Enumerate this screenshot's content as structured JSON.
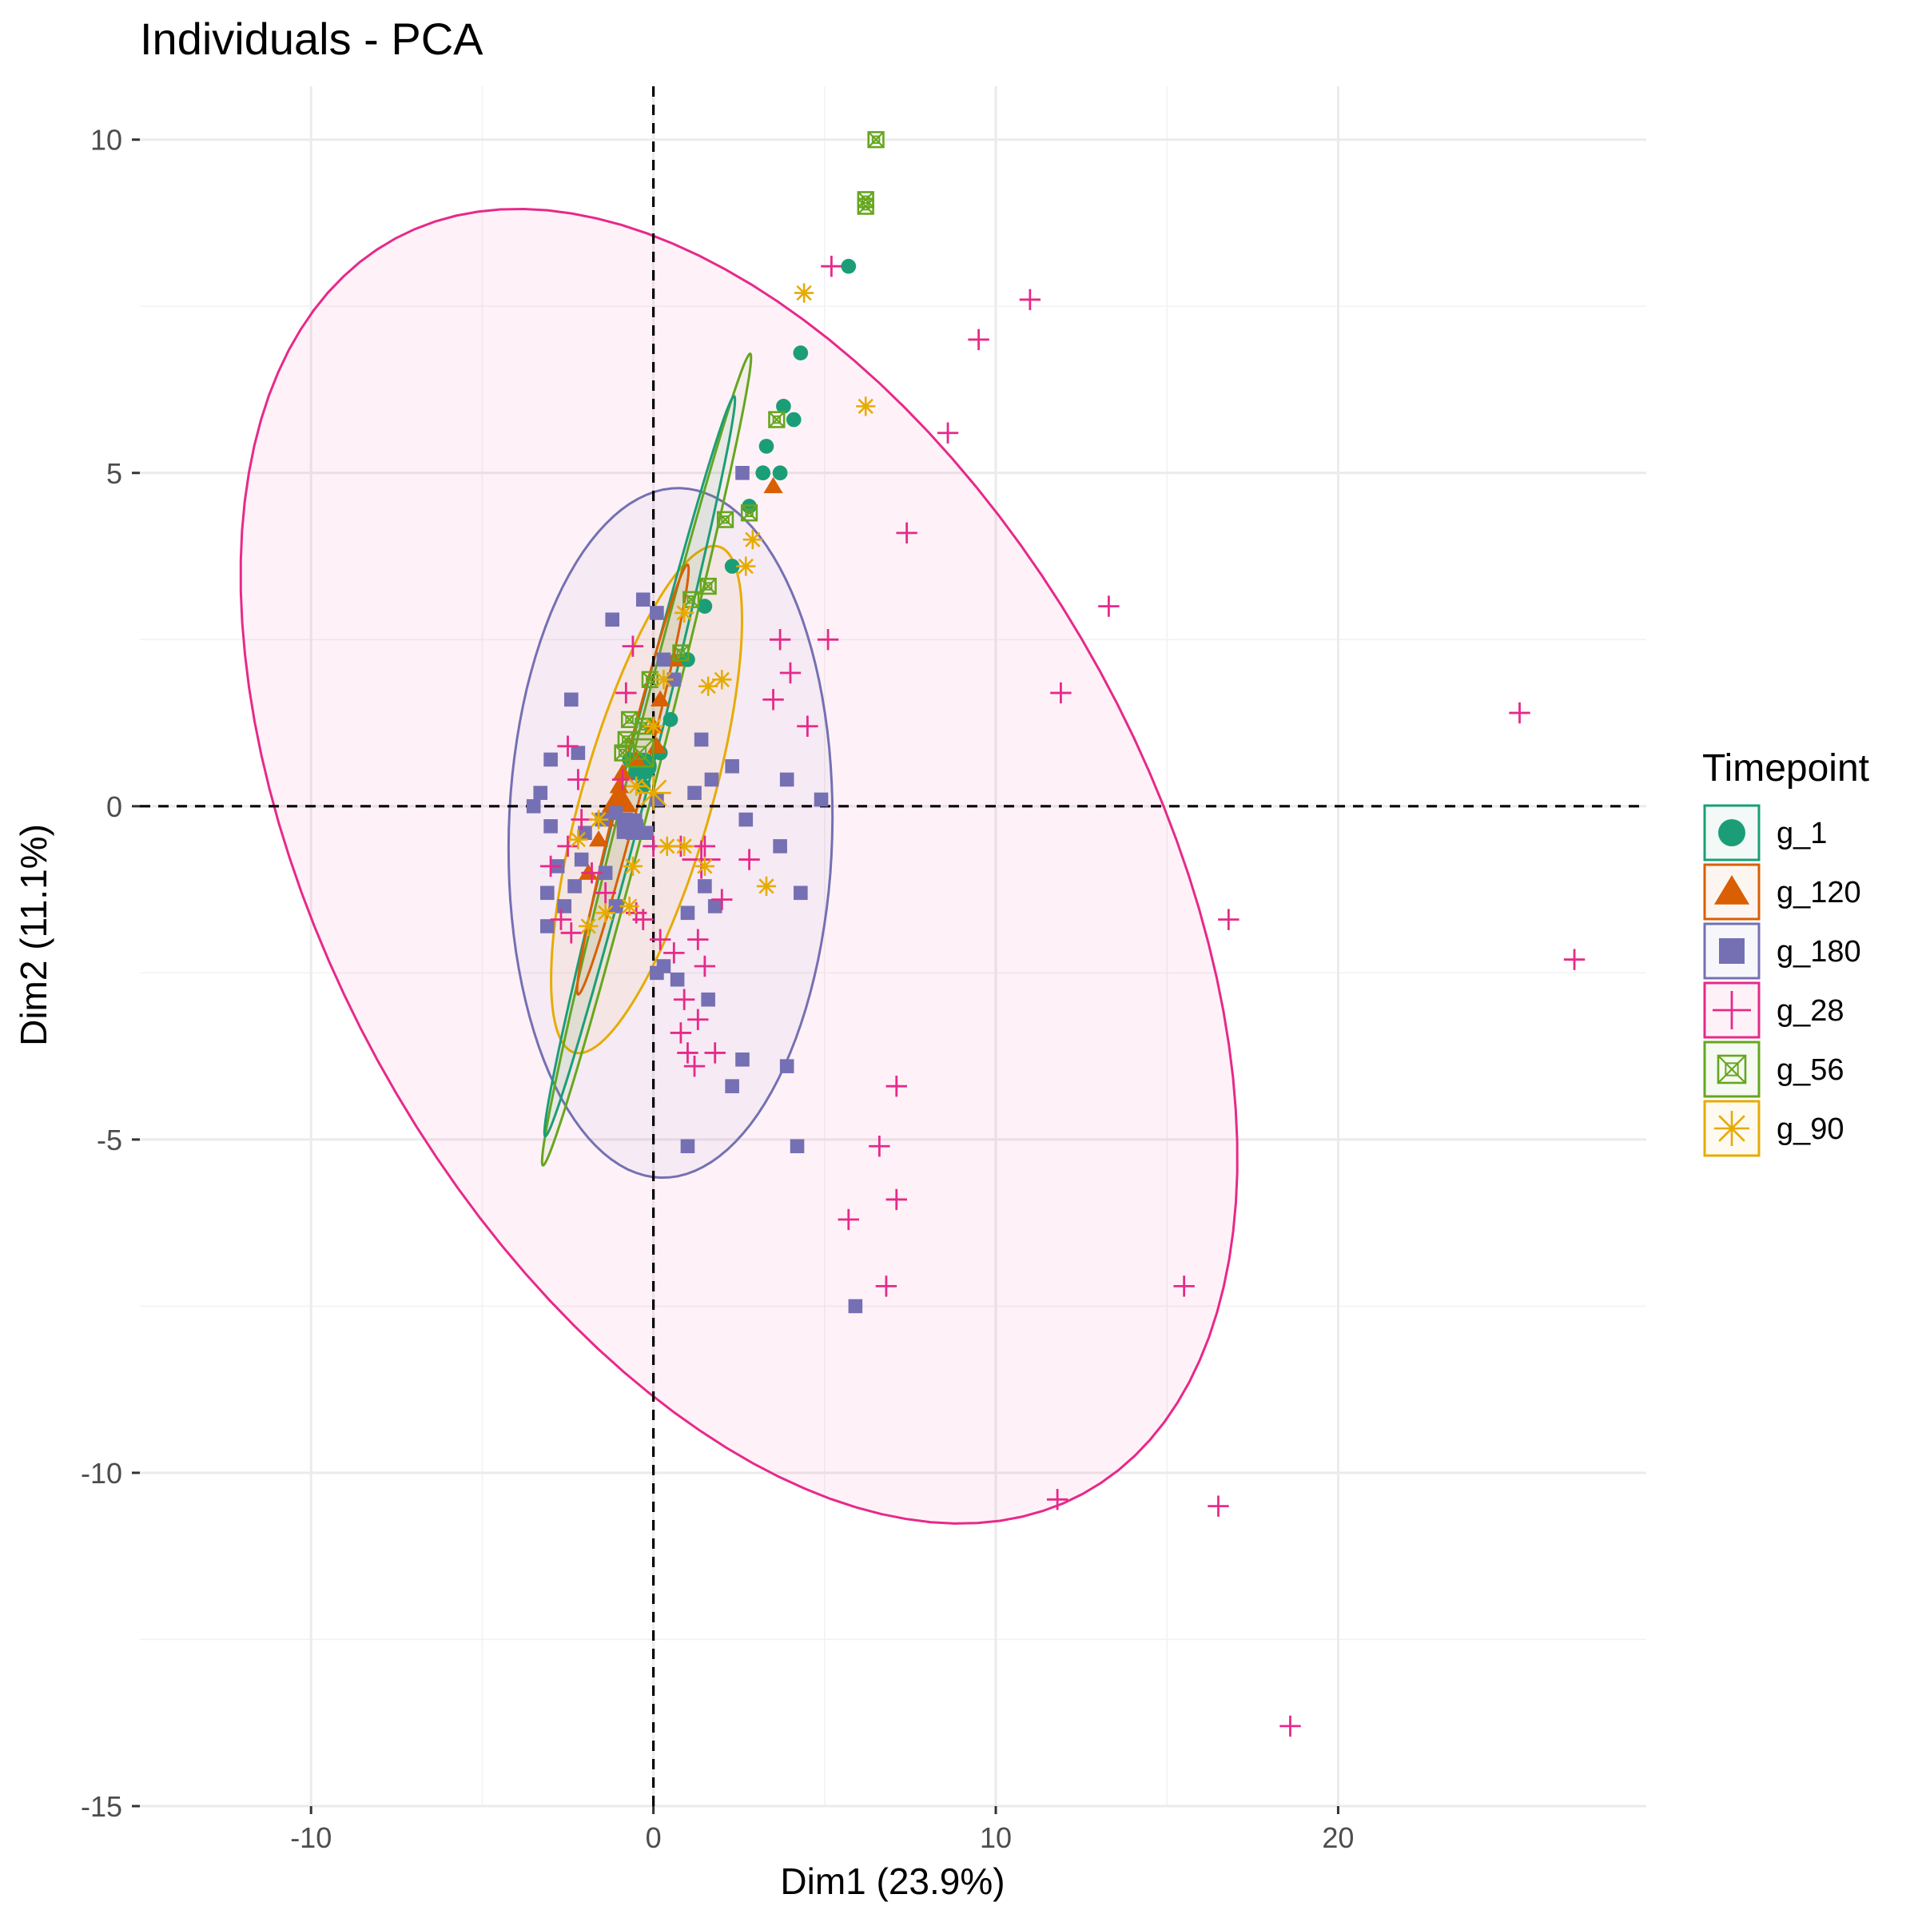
{
  "chart_data": {
    "type": "scatter",
    "title": "Individuals - PCA",
    "xlabel": "Dim1 (23.9%)",
    "ylabel": "Dim2 (11.1%)",
    "xlim": [
      -15,
      29
    ],
    "ylim": [
      -15,
      10.8
    ],
    "xticks": [
      -10,
      0,
      10,
      20
    ],
    "yticks": [
      -15,
      -10,
      -5,
      0,
      5,
      10
    ],
    "xtick_labels": [
      "-10",
      "0",
      "10",
      "20"
    ],
    "ytick_labels": [
      "-15",
      "-10",
      "-5",
      "0",
      "5",
      "10"
    ],
    "reference_lines": {
      "x": 0,
      "y": 0,
      "style": "dashed"
    },
    "grid": true,
    "legend": {
      "title": "Timepoint",
      "position": "right"
    },
    "series": [
      {
        "name": "g_1",
        "color": "#1B9E77",
        "marker": "circle",
        "points": [
          [
            5.7,
            8.1
          ],
          [
            4.3,
            6.8
          ],
          [
            3.8,
            6.0
          ],
          [
            4.1,
            5.8
          ],
          [
            3.3,
            5.4
          ],
          [
            3.7,
            5.0
          ],
          [
            3.2,
            5.0
          ],
          [
            2.8,
            4.5
          ],
          [
            2.3,
            3.6
          ],
          [
            1.5,
            3.0
          ],
          [
            1.0,
            2.2
          ],
          [
            0.5,
            1.3
          ],
          [
            0.2,
            0.8
          ],
          [
            -0.2,
            0.6
          ],
          [
            -0.5,
            0.5
          ],
          [
            -0.7,
            0.7
          ],
          [
            -0.3,
            0.3
          ]
        ],
        "mean": [
          -0.3,
          0.6
        ],
        "ellipse": {
          "cx": -0.4,
          "cy": 0.6,
          "rx": 6.2,
          "ry": 0.35,
          "angle": 63.5
        }
      },
      {
        "name": "g_120",
        "color": "#D95F02",
        "marker": "triangle",
        "points": [
          [
            3.5,
            4.8
          ],
          [
            0.6,
            2.2
          ],
          [
            0.2,
            1.6
          ],
          [
            0.0,
            1.2
          ],
          [
            -0.5,
            0.7
          ],
          [
            -1.0,
            0.3
          ],
          [
            -1.2,
            0.0
          ],
          [
            -1.6,
            -0.5
          ],
          [
            -1.9,
            -1.0
          ],
          [
            -1.4,
            -0.2
          ],
          [
            -0.9,
            0.5
          ],
          [
            0.1,
            0.9
          ]
        ],
        "mean": [
          -1.0,
          0.1
        ],
        "ellipse": {
          "cx": -0.6,
          "cy": 0.4,
          "rx": 3.6,
          "ry": 0.3,
          "angle": 63.5
        }
      },
      {
        "name": "g_180",
        "color": "#7570B3",
        "marker": "square",
        "points": [
          [
            -1.2,
            2.8
          ],
          [
            -2.4,
            1.6
          ],
          [
            -2.2,
            0.8
          ],
          [
            -3.0,
            0.7
          ],
          [
            -3.3,
            0.2
          ],
          [
            -3.5,
            0.0
          ],
          [
            -3.0,
            -0.3
          ],
          [
            -2.8,
            -0.9
          ],
          [
            -3.1,
            -1.3
          ],
          [
            -3.1,
            -1.8
          ],
          [
            -2.6,
            -1.5
          ],
          [
            -2.3,
            -1.2
          ],
          [
            -2.0,
            -0.4
          ],
          [
            -1.5,
            -0.2
          ],
          [
            -1.1,
            -0.1
          ],
          [
            -0.8,
            -0.2
          ],
          [
            -0.5,
            -0.3
          ],
          [
            -0.2,
            -0.4
          ],
          [
            0.1,
            0.1
          ],
          [
            -0.3,
            3.1
          ],
          [
            0.1,
            2.9
          ],
          [
            0.3,
            2.2
          ],
          [
            0.6,
            1.9
          ],
          [
            1.2,
            0.2
          ],
          [
            1.4,
            1.0
          ],
          [
            1.7,
            0.4
          ],
          [
            2.3,
            0.6
          ],
          [
            2.6,
            5.0
          ],
          [
            3.9,
            0.4
          ],
          [
            4.9,
            0.1
          ],
          [
            2.7,
            -0.2
          ],
          [
            3.7,
            -0.6
          ],
          [
            4.3,
            -1.3
          ],
          [
            1.8,
            -1.5
          ],
          [
            1.5,
            -1.2
          ],
          [
            1.0,
            -1.6
          ],
          [
            0.1,
            -2.5
          ],
          [
            0.3,
            -2.4
          ],
          [
            0.7,
            -2.6
          ],
          [
            1.6,
            -2.9
          ],
          [
            2.3,
            -4.2
          ],
          [
            2.6,
            -3.8
          ],
          [
            3.9,
            -3.9
          ],
          [
            4.2,
            -5.1
          ],
          [
            1.0,
            -5.1
          ],
          [
            5.9,
            -7.5
          ],
          [
            -1.1,
            -1.5
          ],
          [
            -1.4,
            -1.0
          ],
          [
            -2.1,
            -0.8
          ],
          [
            -0.6,
            -0.4
          ]
        ],
        "mean": [
          -0.7,
          -0.3
        ],
        "ellipse": {
          "cx": 0.5,
          "cy": -0.4,
          "rx": 4.7,
          "ry": 5.2,
          "angle": -14
        }
      },
      {
        "name": "g_28",
        "color": "#E7298A",
        "marker": "plus",
        "points": [
          [
            5.2,
            8.1
          ],
          [
            11.0,
            7.6
          ],
          [
            9.5,
            7.0
          ],
          [
            8.6,
            5.6
          ],
          [
            7.4,
            4.1
          ],
          [
            13.3,
            3.0
          ],
          [
            11.9,
            1.7
          ],
          [
            25.3,
            1.4
          ],
          [
            16.8,
            -1.7
          ],
          [
            26.9,
            -2.3
          ],
          [
            7.1,
            -4.2
          ],
          [
            6.6,
            -5.1
          ],
          [
            7.1,
            -5.9
          ],
          [
            5.7,
            -6.2
          ],
          [
            6.8,
            -7.2
          ],
          [
            15.5,
            -7.2
          ],
          [
            11.8,
            -10.4
          ],
          [
            16.5,
            -10.5
          ],
          [
            18.6,
            -13.8
          ],
          [
            4.5,
            1.2
          ],
          [
            3.7,
            2.5
          ],
          [
            5.1,
            2.5
          ],
          [
            4.0,
            2.0
          ],
          [
            3.5,
            1.6
          ],
          [
            2.8,
            -0.8
          ],
          [
            2.0,
            -1.4
          ],
          [
            1.3,
            -2.0
          ],
          [
            1.5,
            -2.4
          ],
          [
            0.9,
            -2.9
          ],
          [
            1.3,
            -3.2
          ],
          [
            0.8,
            -3.4
          ],
          [
            1.0,
            -3.7
          ],
          [
            1.2,
            -3.9
          ],
          [
            1.8,
            -3.7
          ],
          [
            0.2,
            -2.0
          ],
          [
            -0.5,
            -1.6
          ],
          [
            0.0,
            -0.6
          ],
          [
            0.8,
            -0.6
          ],
          [
            1.5,
            -0.6
          ],
          [
            -0.6,
            2.4
          ],
          [
            -0.8,
            1.7
          ],
          [
            -2.5,
            0.9
          ],
          [
            -2.2,
            0.4
          ],
          [
            -2.1,
            -0.2
          ],
          [
            -2.5,
            -0.6
          ],
          [
            -1.8,
            -1.0
          ],
          [
            -2.7,
            -1.7
          ],
          [
            -2.4,
            -1.9
          ],
          [
            -3.0,
            -0.9
          ],
          [
            -1.4,
            -1.3
          ],
          [
            -0.3,
            -1.7
          ],
          [
            0.6,
            -2.2
          ],
          [
            -0.9,
            0.4
          ]
        ],
        "mean": [
          1.4,
          -0.8
        ],
        "ellipse": {
          "cx": 2.5,
          "cy": -0.9,
          "rx": 15.5,
          "ry": 8.3,
          "angle": -24
        }
      },
      {
        "name": "g_56",
        "color": "#66A61E",
        "marker": "square-x",
        "points": [
          [
            6.5,
            10.0
          ],
          [
            6.2,
            9.1
          ],
          [
            6.2,
            9.0
          ],
          [
            3.6,
            5.8
          ],
          [
            2.8,
            4.4
          ],
          [
            2.1,
            4.3
          ],
          [
            1.6,
            3.3
          ],
          [
            1.1,
            3.1
          ],
          [
            0.8,
            2.3
          ],
          [
            -0.1,
            1.9
          ],
          [
            -0.7,
            1.3
          ],
          [
            -0.9,
            0.8
          ],
          [
            -0.3,
            1.2
          ],
          [
            -0.8,
            1.0
          ]
        ],
        "mean": [
          -0.4,
          0.8
        ],
        "ellipse": {
          "cx": -0.2,
          "cy": 0.7,
          "rx": 6.8,
          "ry": 0.38,
          "angle": 63.5
        }
      },
      {
        "name": "g_90",
        "color": "#E6AB02",
        "marker": "asterisk",
        "points": [
          [
            4.4,
            7.7
          ],
          [
            6.2,
            6.0
          ],
          [
            2.9,
            4.0
          ],
          [
            2.7,
            3.6
          ],
          [
            2.0,
            1.9
          ],
          [
            1.6,
            1.8
          ],
          [
            0.9,
            2.9
          ],
          [
            0.3,
            1.9
          ],
          [
            0.0,
            1.2
          ],
          [
            -0.5,
            0.3
          ],
          [
            0.4,
            -0.6
          ],
          [
            0.9,
            -0.6
          ],
          [
            1.5,
            -0.9
          ],
          [
            3.3,
            -1.2
          ],
          [
            -0.6,
            -0.9
          ],
          [
            -0.7,
            -1.5
          ],
          [
            -1.4,
            -1.6
          ],
          [
            -1.9,
            -1.8
          ],
          [
            -2.2,
            -0.5
          ],
          [
            -1.6,
            -0.2
          ]
        ],
        "mean": [
          0.0,
          0.2
        ],
        "ellipse": {
          "cx": -0.2,
          "cy": 0.1,
          "rx": 4.4,
          "ry": 1.7,
          "angle": 57
        }
      }
    ]
  }
}
